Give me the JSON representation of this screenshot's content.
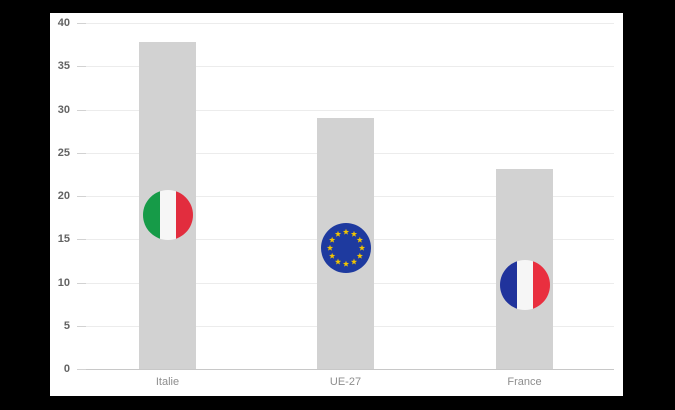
{
  "chart_data": {
    "type": "bar",
    "title": "",
    "xlabel": "",
    "ylabel": "",
    "categories": [
      "Italie",
      "UE-27",
      "France"
    ],
    "values": [
      37.8,
      29,
      23.1
    ],
    "flags": [
      "italy-flag",
      "eu-flag",
      "france-flag"
    ],
    "flag_center_values": [
      17.8,
      14,
      9.7
    ],
    "ylim": [
      0,
      40
    ],
    "yticks": [
      0,
      5,
      10,
      15,
      20,
      25,
      30,
      35,
      40
    ],
    "grid": true,
    "legend": "none"
  },
  "colors": {
    "plot_background": "#ffffff",
    "frame_background": "#000000",
    "bar": "#d2d2d2",
    "gridline": "#ececec",
    "tick": "#d2d2d2",
    "baseline": "#c8c8c8",
    "y_label": "#636363",
    "x_label": "#8e8e8e",
    "italy_green": "#169b48",
    "italy_white": "#f6f6f6",
    "italy_red": "#e22d3e",
    "eu_blue": "#1e3a9f",
    "eu_star": "#f2c500",
    "france_blue": "#20339c",
    "france_white": "#f6f6f6",
    "france_red": "#e92f3f"
  }
}
